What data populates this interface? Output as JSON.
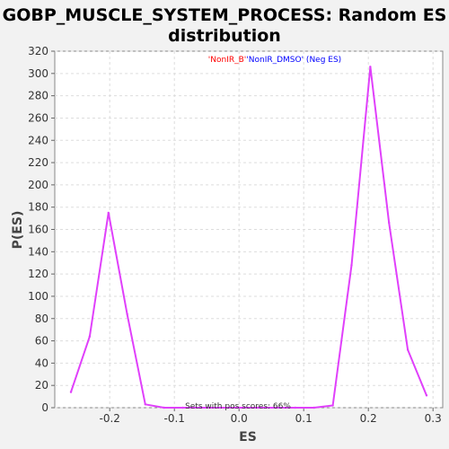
{
  "chart_data": {
    "type": "line",
    "title_line1": "GOBP_MUSCLE_SYSTEM_PROCESS: Random ES",
    "title_line2": "distribution",
    "xlabel": "ES",
    "ylabel": "P(ES)",
    "xlim": [
      -0.285,
      0.315
    ],
    "ylim": [
      0,
      320
    ],
    "xticks": [
      -0.2,
      -0.1,
      0.0,
      0.1,
      0.2,
      0.3
    ],
    "xtick_labels": [
      "-0.2",
      "-0.1",
      "0.0",
      "0.1",
      "0.2",
      "0.3"
    ],
    "yticks": [
      0,
      20,
      40,
      60,
      80,
      100,
      120,
      140,
      160,
      180,
      200,
      220,
      240,
      260,
      280,
      300,
      320
    ],
    "ytick_labels": [
      "0",
      "20",
      "40",
      "60",
      "80",
      "100",
      "120",
      "140",
      "160",
      "180",
      "200",
      "220",
      "240",
      "260",
      "280",
      "300",
      "320"
    ],
    "grid": true,
    "legend": {
      "part1": "'NonIR_B'",
      "part2": "'NonIR_DMSO' (Neg ES)",
      "color1": "#ff0000",
      "color2": "#0000ff"
    },
    "annotation": "Sets with pos scores: 66%",
    "series": [
      {
        "color": "#e040fb",
        "x": [
          -0.26,
          -0.231,
          -0.202,
          -0.173,
          -0.145,
          -0.116,
          -0.087,
          -0.058,
          -0.029,
          0.0,
          0.029,
          0.058,
          0.087,
          0.116,
          0.145,
          0.174,
          0.203,
          0.232,
          0.261,
          0.29
        ],
        "y": [
          14,
          64,
          175,
          84,
          3,
          0,
          0,
          0,
          0,
          0,
          0,
          0,
          0,
          0,
          2,
          128,
          306,
          166,
          52,
          11
        ]
      }
    ]
  }
}
